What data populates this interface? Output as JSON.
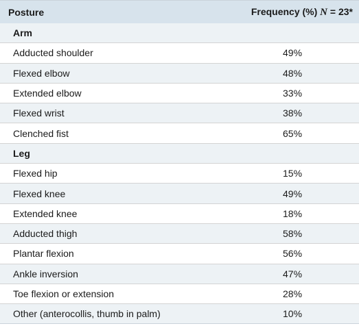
{
  "table": {
    "header": {
      "posture": "Posture",
      "frequency_prefix": "Frequency (%) ",
      "n_var": "N",
      "n_suffix": " = 23*"
    },
    "sections": [
      {
        "label": "Arm",
        "rows": [
          {
            "posture": "Adducted shoulder",
            "frequency": "49%"
          },
          {
            "posture": "Flexed elbow",
            "frequency": "48%"
          },
          {
            "posture": "Extended elbow",
            "frequency": "33%"
          },
          {
            "posture": "Flexed wrist",
            "frequency": "38%"
          },
          {
            "posture": "Clenched fist",
            "frequency": "65%"
          }
        ]
      },
      {
        "label": "Leg",
        "rows": [
          {
            "posture": "Flexed hip",
            "frequency": "15%"
          },
          {
            "posture": "Flexed knee",
            "frequency": "49%"
          },
          {
            "posture": "Extended knee",
            "frequency": "18%"
          },
          {
            "posture": "Adducted thigh",
            "frequency": "58%"
          },
          {
            "posture": "Plantar flexion",
            "frequency": "56%"
          },
          {
            "posture": "Ankle inversion",
            "frequency": "47%"
          },
          {
            "posture": "Toe flexion or extension",
            "frequency": "28%"
          },
          {
            "posture": "Other (anterocollis, thumb in palm)",
            "frequency": "10%"
          }
        ]
      }
    ]
  },
  "colors": {
    "header_bg": "#d7e3ec",
    "stripe_bg": "#edf2f5",
    "row_bg": "#ffffff",
    "rule": "#d3d3d3"
  }
}
